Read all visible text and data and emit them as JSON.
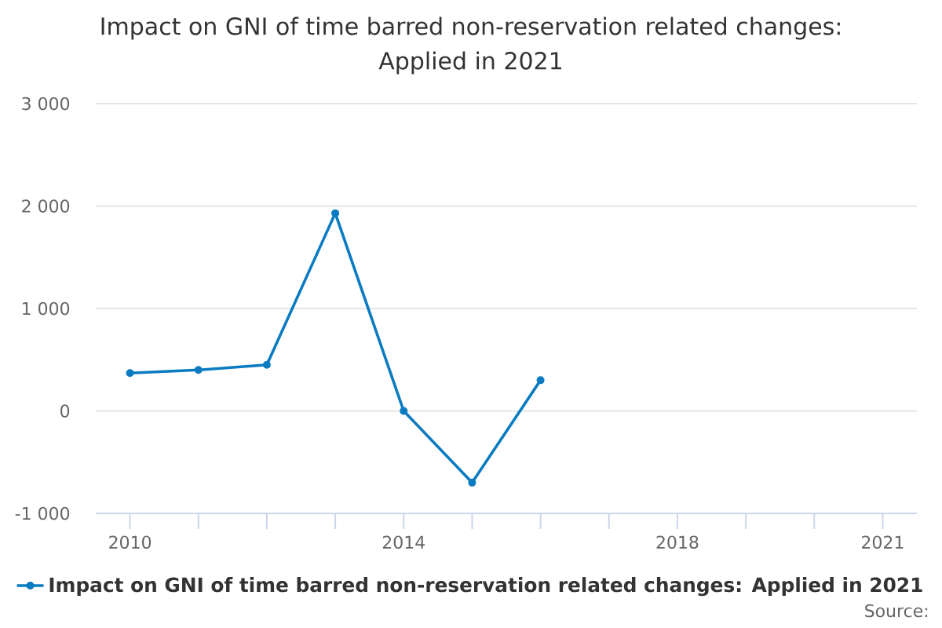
{
  "chart_data": {
    "type": "line",
    "title": "Impact on GNI of time barred non-reservation related changes: Applied in 2021",
    "categories": [
      "2010",
      null,
      null,
      null,
      "2014",
      null,
      null,
      null,
      "2018",
      null,
      null,
      "2021"
    ],
    "series": [
      {
        "name": "Impact on GNI of time barred non-reservation related changes: Applied in 2021",
        "color": "#0b7bc1",
        "values": [
          370,
          400,
          450,
          1930,
          0,
          -700,
          300,
          null,
          null,
          null,
          null,
          null
        ]
      }
    ],
    "ylim": [
      -1000,
      3000
    ],
    "yticks": [
      {
        "value": -1000,
        "label": "-1 000"
      },
      0,
      {
        "value": 1000,
        "label": "1 000"
      },
      {
        "value": 2000,
        "label": "2 000"
      },
      {
        "value": 3000,
        "label": "3 000"
      }
    ],
    "grid": "y",
    "legend": "bottom",
    "marker": "circle",
    "line_style": "solid",
    "annotations": [
      "Source:"
    ]
  }
}
